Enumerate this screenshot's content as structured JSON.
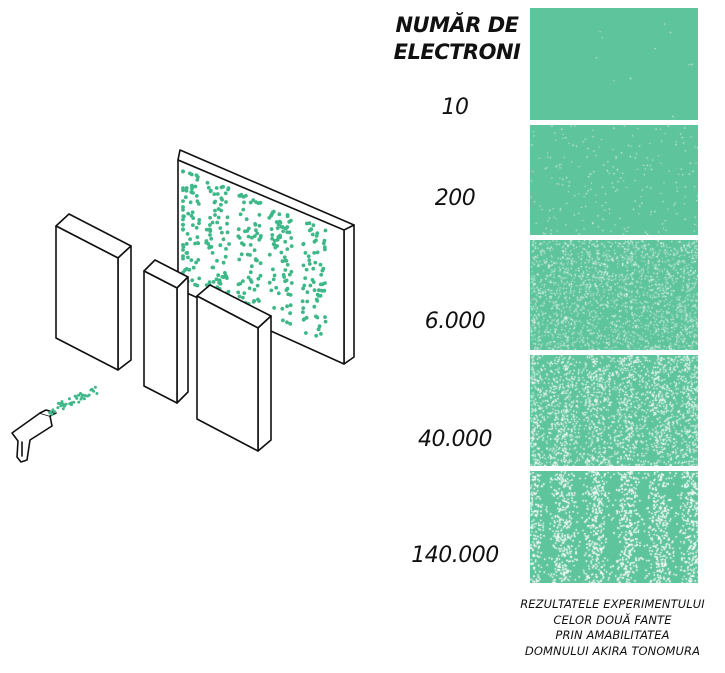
{
  "header": {
    "line1": "NUMĂR DE",
    "line2": "ELECTRONI"
  },
  "results": [
    {
      "count": "10",
      "density": 0.0006,
      "fringe": 0.0
    },
    {
      "count": "200",
      "density": 0.012,
      "fringe": 0.0
    },
    {
      "count": "6.000",
      "density": 0.12,
      "fringe": 0.25
    },
    {
      "count": "40.000",
      "density": 0.3,
      "fringe": 0.5
    },
    {
      "count": "140.000",
      "density": 0.55,
      "fringe": 0.9
    }
  ],
  "caption": {
    "line1": "REZULTATELE EXPERIMENTULUI",
    "line2": "CELOR DOUĂ FANTE",
    "line3": "PRIN AMABILITATEA",
    "line4": "DOMNULUI AKIRA TONOMURA"
  },
  "colors": {
    "screen_green": "#5ec49c",
    "dot_green": "#3fb889",
    "grain_white": "#ffffff",
    "ink": "#111111"
  },
  "icons": [
    "electron-gun-icon"
  ]
}
